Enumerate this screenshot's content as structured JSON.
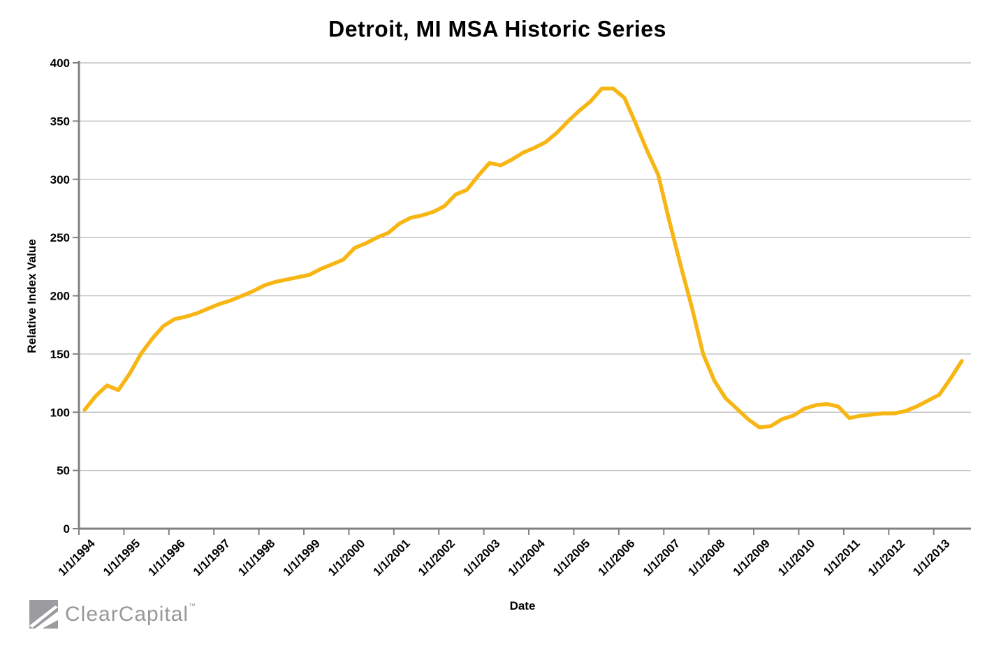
{
  "page": {
    "background": "#FFFFFF"
  },
  "chart_data": {
    "type": "line",
    "title": "Detroit, MI MSA Historic Series",
    "xlabel": "Date",
    "ylabel": "Relative Index Value",
    "x_frequency": "quarterly",
    "x_start": "1/1/1994",
    "x_end": "7/1/2013",
    "x_tick_labels": [
      "1/1/1994",
      "1/1/1995",
      "1/1/1996",
      "1/1/1997",
      "1/1/1998",
      "1/1/1999",
      "1/1/2000",
      "1/1/2001",
      "1/1/2002",
      "1/1/2003",
      "1/1/2004",
      "1/1/2005",
      "1/1/2006",
      "1/1/2007",
      "1/1/2008",
      "1/1/2009",
      "1/1/2010",
      "1/1/2011",
      "1/1/2012",
      "1/1/2013"
    ],
    "ytick_labels": [
      "400",
      "350",
      "300",
      "250",
      "200",
      "150",
      "100",
      "50",
      "0"
    ],
    "ylim": [
      0,
      400
    ],
    "ytick_step": 50,
    "grid": "horizontal",
    "legend": false,
    "axis_color": "#808080",
    "gridline_color": "#C3C3C3",
    "text_color": "#000000",
    "series": [
      {
        "name": "Relative Index Value",
        "color": "#F7B613",
        "values": [
          102,
          114,
          123,
          119,
          133,
          150,
          163,
          174,
          180,
          182,
          185,
          189,
          193,
          196,
          200,
          204,
          209,
          212,
          214,
          216,
          218,
          223,
          227,
          231,
          241,
          245,
          250,
          254,
          262,
          267,
          269,
          272,
          277,
          287,
          291,
          303,
          314,
          312,
          317,
          323,
          327,
          332,
          340,
          350,
          359,
          367,
          378,
          378,
          370,
          348,
          325,
          304,
          264,
          226,
          190,
          150,
          127,
          112,
          103,
          94,
          87,
          88,
          94,
          97,
          103,
          106,
          107,
          105,
          95,
          97,
          98,
          99,
          99,
          101,
          105,
          110,
          115,
          129,
          144
        ]
      }
    ]
  },
  "logo": {
    "text": "ClearCapital",
    "mark": "™",
    "color": "#97979C"
  }
}
